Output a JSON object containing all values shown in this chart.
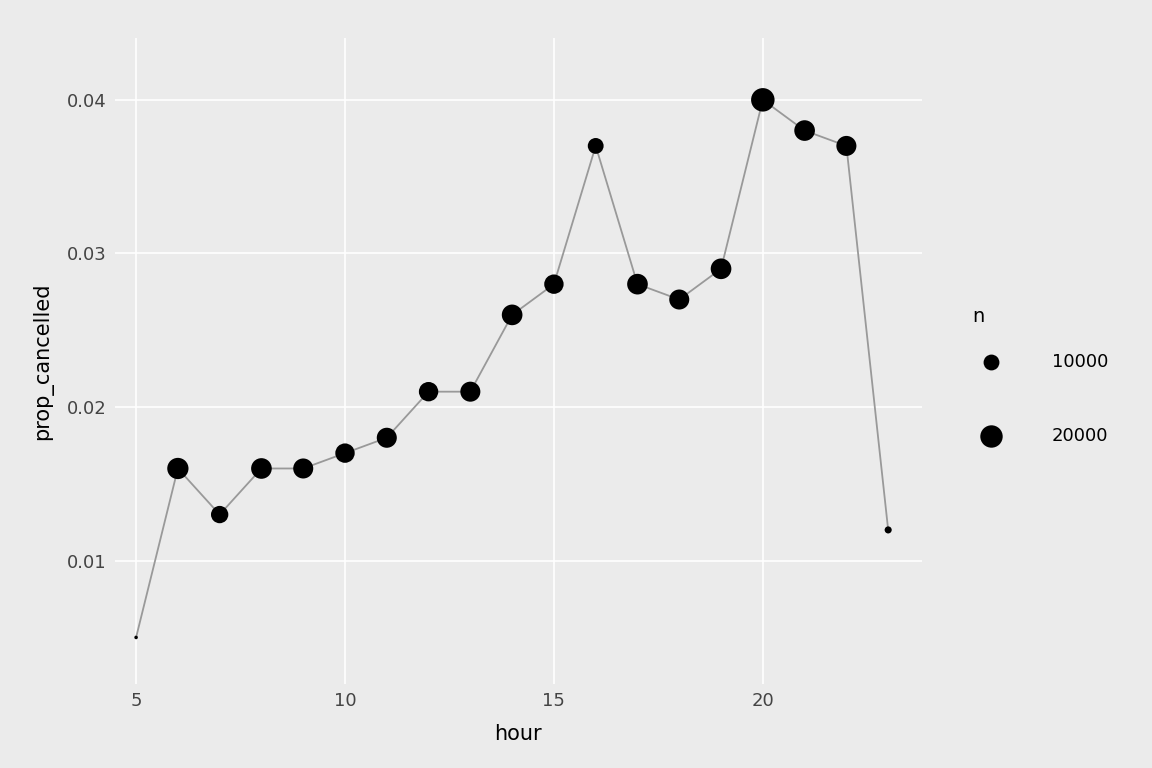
{
  "hours": [
    5,
    6,
    7,
    8,
    9,
    10,
    11,
    12,
    13,
    14,
    15,
    16,
    17,
    18,
    19,
    20,
    21,
    22,
    23
  ],
  "prop_cancelled": [
    0.005,
    0.016,
    0.013,
    0.016,
    0.016,
    0.017,
    0.018,
    0.021,
    0.021,
    0.026,
    0.028,
    0.037,
    0.028,
    0.027,
    0.029,
    0.04,
    0.038,
    0.037,
    0.012
  ],
  "n_size": [
    500,
    18000,
    12000,
    17000,
    16000,
    15000,
    16000,
    15000,
    16000,
    17000,
    15000,
    10000,
    17000,
    16000,
    17000,
    22000,
    17000,
    16000,
    2000
  ],
  "line_color": "#999999",
  "point_color": "#000000",
  "panel_background": "#EBEBEB",
  "figure_background": "#EBEBEB",
  "grid_color": "#ffffff",
  "xlabel": "hour",
  "ylabel": "prop_cancelled",
  "xlim": [
    4.5,
    23.8
  ],
  "ylim": [
    0.002,
    0.044
  ],
  "xticks": [
    5,
    10,
    15,
    20
  ],
  "yticks": [
    0.01,
    0.02,
    0.03,
    0.04
  ],
  "legend_title": "n",
  "legend_sizes": [
    10000,
    20000
  ],
  "legend_labels": [
    "10000",
    "20000"
  ],
  "axis_label_fontsize": 15,
  "tick_fontsize": 13,
  "legend_fontsize": 13,
  "scale_factor": 0.013
}
